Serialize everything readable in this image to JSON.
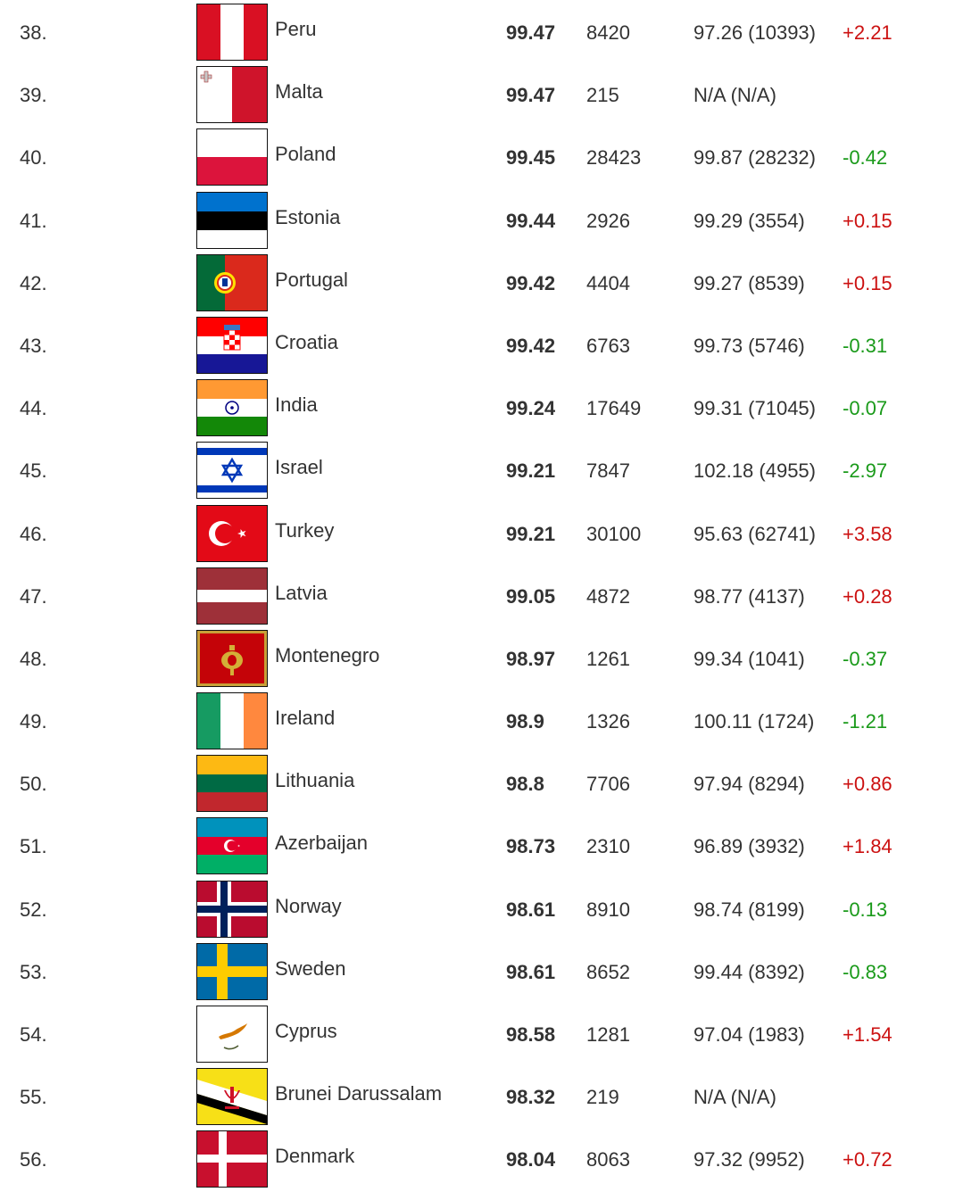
{
  "colors": {
    "text": "#333333",
    "change_positive": "#cc1111",
    "change_negative": "#1a9a1a"
  },
  "rows": [
    {
      "rank": "38.",
      "country": "Peru",
      "flag_icon": "peru-flag-icon",
      "score": "99.47",
      "count": "8420",
      "previous": "97.26 (10393)",
      "change": "+2.21"
    },
    {
      "rank": "39.",
      "country": "Malta",
      "flag_icon": "malta-flag-icon",
      "score": "99.47",
      "count": "215",
      "previous": "N/A (N/A)",
      "change": ""
    },
    {
      "rank": "40.",
      "country": "Poland",
      "flag_icon": "poland-flag-icon",
      "score": "99.45",
      "count": "28423",
      "previous": "99.87 (28232)",
      "change": "-0.42"
    },
    {
      "rank": "41.",
      "country": "Estonia",
      "flag_icon": "estonia-flag-icon",
      "score": "99.44",
      "count": "2926",
      "previous": "99.29 (3554)",
      "change": "+0.15"
    },
    {
      "rank": "42.",
      "country": "Portugal",
      "flag_icon": "portugal-flag-icon",
      "score": "99.42",
      "count": "4404",
      "previous": "99.27 (8539)",
      "change": "+0.15"
    },
    {
      "rank": "43.",
      "country": "Croatia",
      "flag_icon": "croatia-flag-icon",
      "score": "99.42",
      "count": "6763",
      "previous": "99.73 (5746)",
      "change": "-0.31"
    },
    {
      "rank": "44.",
      "country": "India",
      "flag_icon": "india-flag-icon",
      "score": "99.24",
      "count": "17649",
      "previous": "99.31 (71045)",
      "change": "-0.07"
    },
    {
      "rank": "45.",
      "country": "Israel",
      "flag_icon": "israel-flag-icon",
      "score": "99.21",
      "count": "7847",
      "previous": "102.18 (4955)",
      "change": "-2.97"
    },
    {
      "rank": "46.",
      "country": "Turkey",
      "flag_icon": "turkey-flag-icon",
      "score": "99.21",
      "count": "30100",
      "previous": "95.63 (62741)",
      "change": "+3.58"
    },
    {
      "rank": "47.",
      "country": "Latvia",
      "flag_icon": "latvia-flag-icon",
      "score": "99.05",
      "count": "4872",
      "previous": "98.77 (4137)",
      "change": "+0.28"
    },
    {
      "rank": "48.",
      "country": "Montenegro",
      "flag_icon": "montenegro-flag-icon",
      "score": "98.97",
      "count": "1261",
      "previous": "99.34 (1041)",
      "change": "-0.37"
    },
    {
      "rank": "49.",
      "country": "Ireland",
      "flag_icon": "ireland-flag-icon",
      "score": "98.9",
      "count": "1326",
      "previous": "100.11 (1724)",
      "change": "-1.21"
    },
    {
      "rank": "50.",
      "country": "Lithuania",
      "flag_icon": "lithuania-flag-icon",
      "score": "98.8",
      "count": "7706",
      "previous": "97.94 (8294)",
      "change": "+0.86"
    },
    {
      "rank": "51.",
      "country": "Azerbaijan",
      "flag_icon": "azerbaijan-flag-icon",
      "score": "98.73",
      "count": "2310",
      "previous": "96.89 (3932)",
      "change": "+1.84"
    },
    {
      "rank": "52.",
      "country": "Norway",
      "flag_icon": "norway-flag-icon",
      "score": "98.61",
      "count": "8910",
      "previous": "98.74 (8199)",
      "change": "-0.13"
    },
    {
      "rank": "53.",
      "country": "Sweden",
      "flag_icon": "sweden-flag-icon",
      "score": "98.61",
      "count": "8652",
      "previous": "99.44 (8392)",
      "change": "-0.83"
    },
    {
      "rank": "54.",
      "country": "Cyprus",
      "flag_icon": "cyprus-flag-icon",
      "score": "98.58",
      "count": "1281",
      "previous": "97.04 (1983)",
      "change": "+1.54"
    },
    {
      "rank": "55.",
      "country": "Brunei Darussalam",
      "flag_icon": "brunei-flag-icon",
      "score": "98.32",
      "count": "219",
      "previous": "N/A (N/A)",
      "change": ""
    },
    {
      "rank": "56.",
      "country": "Denmark",
      "flag_icon": "denmark-flag-icon",
      "score": "98.04",
      "count": "8063",
      "previous": "97.32 (9952)",
      "change": "+0.72"
    }
  ]
}
